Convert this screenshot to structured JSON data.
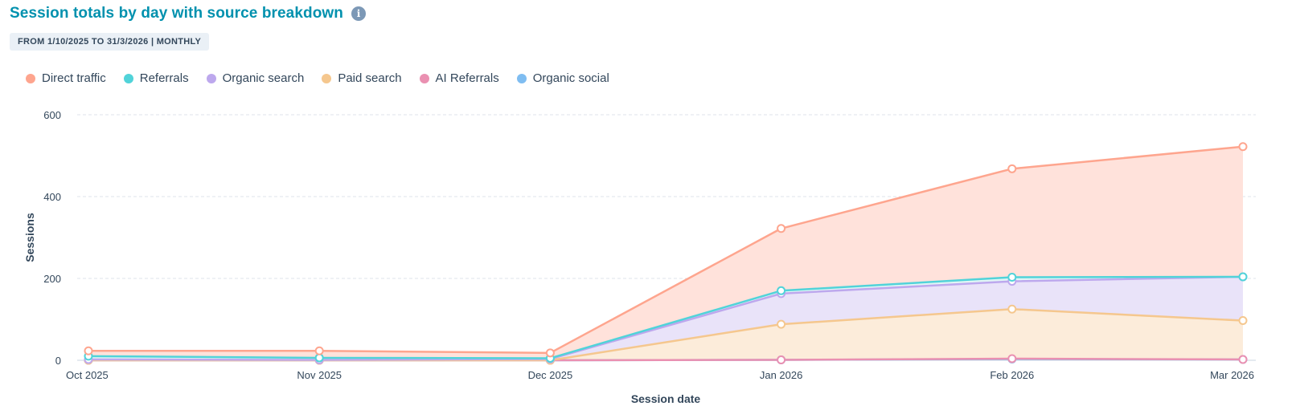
{
  "header": {
    "title": "Session totals by day with source breakdown",
    "info_icon": "info-circle-icon",
    "date_range_badge": "FROM 1/10/2025 TO 31/3/2026 | MONTHLY"
  },
  "chart_data": {
    "type": "area",
    "stacked": true,
    "title": "Session totals by day with source breakdown",
    "xlabel": "Session date",
    "ylabel": "Sessions",
    "ylim": [
      0,
      600
    ],
    "yticks": [
      0,
      200,
      400,
      600
    ],
    "grid": true,
    "legend_position": "top-left",
    "categories": [
      "Oct 2025",
      "Nov 2025",
      "Dec 2025",
      "Jan 2026",
      "Feb 2026",
      "Mar 2026"
    ],
    "series": [
      {
        "name": "Organic social",
        "color": "#7fbdf1",
        "fill": "#e6f1fc",
        "values": [
          0,
          0,
          0,
          1,
          3,
          2
        ]
      },
      {
        "name": "AI Referrals",
        "color": "#ea90b1",
        "fill": "#fce8ef",
        "values": [
          0,
          0,
          0,
          0,
          1,
          0
        ]
      },
      {
        "name": "Paid search",
        "color": "#f5c78e",
        "fill": "#fcecda",
        "values": [
          0,
          0,
          0,
          87,
          121,
          95
        ]
      },
      {
        "name": "Organic search",
        "color": "#bda8ed",
        "fill": "#e9e3f9",
        "values": [
          2,
          1,
          3,
          75,
          68,
          107
        ]
      },
      {
        "name": "Referrals",
        "color": "#51d3d9",
        "fill": "#e0f5f6",
        "values": [
          8,
          5,
          2,
          7,
          10,
          0
        ]
      },
      {
        "name": "Direct traffic",
        "color": "#fea58e",
        "fill": "#ffe2db",
        "values": [
          13,
          17,
          13,
          152,
          265,
          318
        ]
      }
    ],
    "legend_order": [
      "Direct traffic",
      "Referrals",
      "Organic search",
      "Paid search",
      "AI Referrals",
      "Organic social"
    ]
  }
}
